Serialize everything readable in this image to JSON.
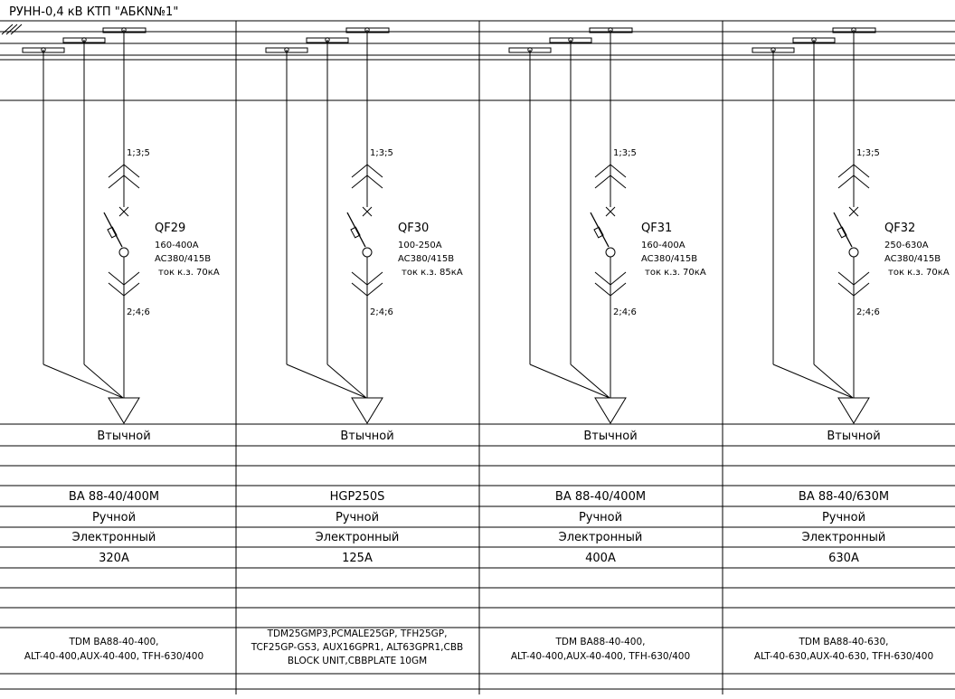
{
  "title": "РУНН-0,4 кВ КТП \"АБКN№1\"",
  "terminals_top": "1;3;5",
  "terminals_bottom": "2;4;6",
  "breakers": [
    {
      "id": "QF29",
      "current_range": "160-400A",
      "voltage": "AC380/415B",
      "breaking_capacity": "ток к.з. 70кА",
      "connection": "Втычной",
      "model": "ВА 88-40/400М",
      "drive": "Ручной",
      "release": "Электронный",
      "rated_current": "320А",
      "accessories": [
        "TDM BA88-40-400,",
        "ALT-40-400,AUX-40-400, TFH-630/400"
      ]
    },
    {
      "id": "QF30",
      "current_range": "100-250A",
      "voltage": "AC380/415B",
      "breaking_capacity": "ток к.з. 85кА",
      "connection": "Втычной",
      "model": "HGP250S",
      "drive": "Ручной",
      "release": "Электронный",
      "rated_current": "125А",
      "accessories": [
        "TDM25GMP3,PCMALE25GP, TFH25GP,",
        "TCF25GP-GS3, AUX16GPR1, ALT63GPR1,CBB",
        "BLOCK UNIT,CBBPLATE 10GM"
      ]
    },
    {
      "id": "QF31",
      "current_range": "160-400A",
      "voltage": "AC380/415B",
      "breaking_capacity": "ток к.з. 70кА",
      "connection": "Втычной",
      "model": "ВА 88-40/400М",
      "drive": "Ручной",
      "release": "Электронный",
      "rated_current": "400А",
      "accessories": [
        "TDM BA88-40-400,",
        "ALT-40-400,AUX-40-400, TFH-630/400"
      ]
    },
    {
      "id": "QF32",
      "current_range": "250-630A",
      "voltage": "AC380/415B",
      "breaking_capacity": "ток к.з. 70кА",
      "connection": "Втычной",
      "model": "ВА 88-40/630М",
      "drive": "Ручной",
      "release": "Электронный",
      "rated_current": "630А",
      "accessories": [
        "TDM BA88-40-630,",
        "ALT-40-630,AUX-40-630, TFH-630/400"
      ]
    }
  ]
}
